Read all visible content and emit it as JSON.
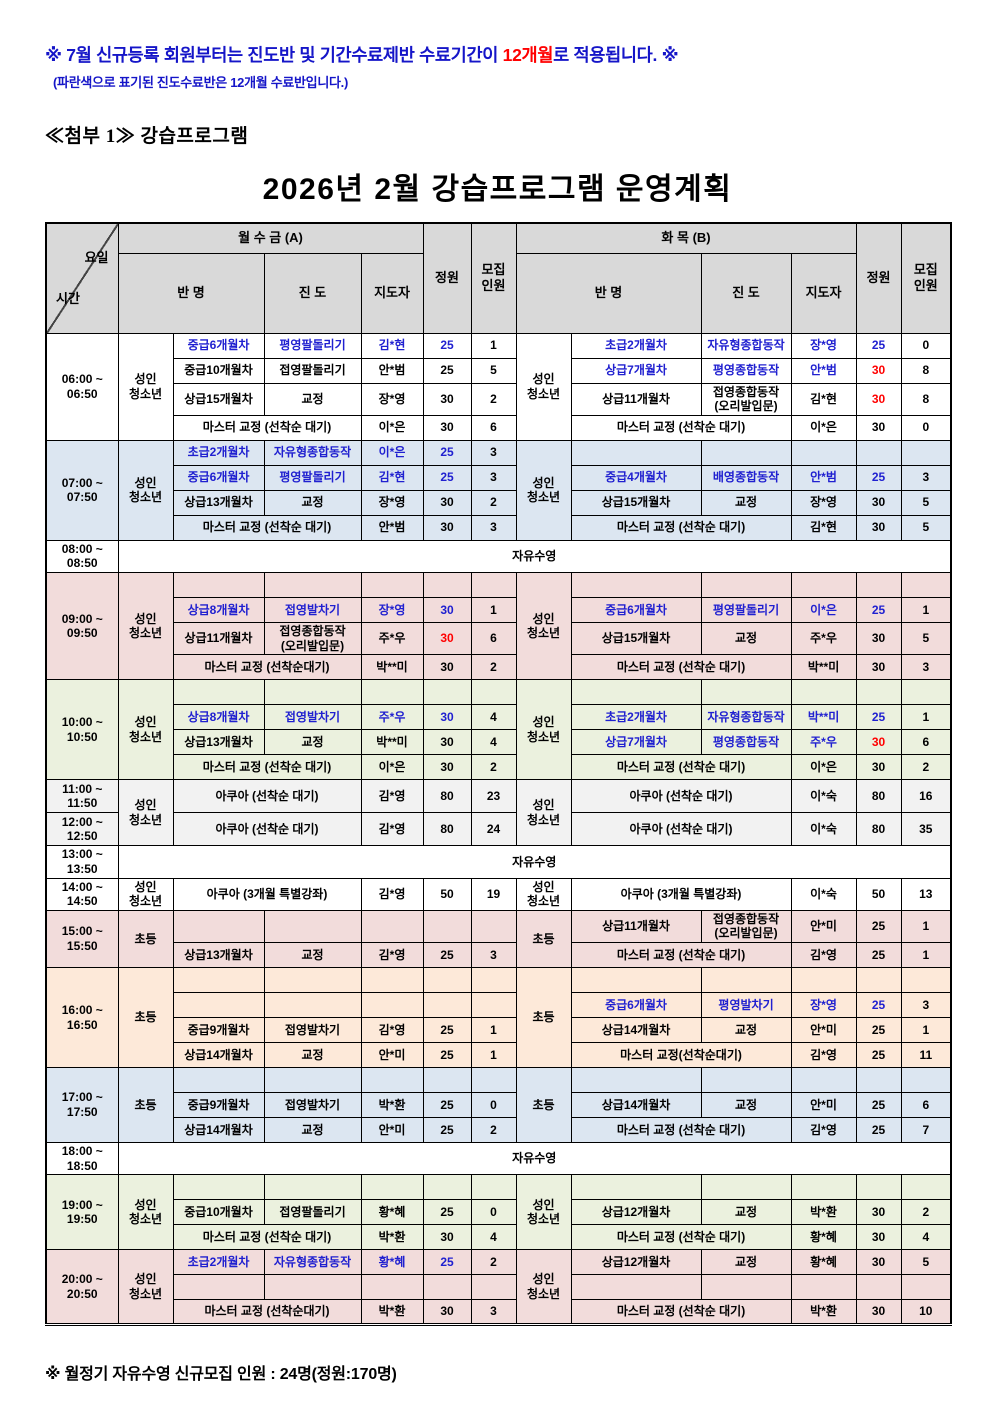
{
  "notice": {
    "line1_pre": "※ 7월 신규등록 회원부터는 진도반 및 기간수료제반 수료기간이 ",
    "line1_highlight": "12개월",
    "line1_post": "로 적용됩니다. ※",
    "line2": "(파란색으로 표기된 진도수료반은 12개월 수료반입니다.)"
  },
  "attachment_label": "≪첨부 1≫ 강습프로그램",
  "title": "2026년 2월 강습프로그램 운영계획",
  "footer": "※ 월정기 자유수영 신규모집 인원 : 24명(정원:170명)",
  "colors": {
    "notice_blue": "#1515c8",
    "highlight_red": "#ff0000",
    "progress_class_blue": "#2020d0",
    "capacity_red": "#ff0000",
    "header_grey": "#d9d9d9",
    "block_blue": "#dce6f1",
    "block_pink": "#f2dcdb",
    "block_green": "#ebf1de",
    "block_cream": "#fde9d9",
    "block_grey": "#f2f2f2"
  },
  "table": {
    "corner_top": "요일",
    "corner_bottom": "시간",
    "group_a": "월 수 금 (A)",
    "group_b": "화  목 (B)",
    "h_class": "반  명",
    "h_progress": "진  도",
    "h_coach": "지도자",
    "h_capacity": "정원",
    "h_recruit": "모집\n인원",
    "blocks": [
      {
        "kind": "lessons",
        "time": "06:00 ~\n06:50",
        "bg": "#ffffff",
        "a_group": "성인\n청소년",
        "b_group": "성인\n청소년",
        "rows": [
          {
            "a": {
              "ban": "중급6개월차",
              "prog": "평영팔돌리기",
              "coach": "김*현",
              "cap": "25",
              "rec": "1",
              "blue": true,
              "cap_color": "blue"
            },
            "b": {
              "ban": "초급2개월차",
              "prog": "자유형종합동작",
              "coach": "장*영",
              "cap": "25",
              "rec": "0",
              "blue": true,
              "cap_color": "blue"
            }
          },
          {
            "a": {
              "ban": "중급10개월차",
              "prog": "접영팔돌리기",
              "coach": "안*범",
              "cap": "25",
              "rec": "5"
            },
            "b": {
              "ban": "상급7개월차",
              "prog": "평영종합동작",
              "coach": "안*범",
              "cap": "30",
              "rec": "8",
              "blue": true,
              "cap_color": "red"
            }
          },
          {
            "a": {
              "ban": "상급15개월차",
              "prog": "교정",
              "coach": "장*영",
              "cap": "30",
              "rec": "2"
            },
            "b": {
              "ban": "상급11개월차",
              "prog": "접영종합동작\n(오리발입문)",
              "coach": "김*현",
              "cap": "30",
              "rec": "8",
              "cap_color": "red"
            }
          },
          {
            "a": {
              "merged": "마스터 교정 (선착순 대기)",
              "coach": "이*은",
              "cap": "30",
              "rec": "6"
            },
            "b": {
              "merged": "마스터 교정 (선착순 대기)",
              "coach": "이*은",
              "cap": "30",
              "rec": "0"
            }
          }
        ]
      },
      {
        "kind": "lessons",
        "time": "07:00 ~\n07:50",
        "bg": "#dce6f1",
        "a_group": "성인\n청소년",
        "b_group": "성인\n청소년",
        "rows": [
          {
            "a": {
              "ban": "초급2개월차",
              "prog": "자유형종합동작",
              "coach": "이*은",
              "cap": "25",
              "rec": "3",
              "blue": true,
              "cap_color": "blue"
            },
            "b": null
          },
          {
            "a": {
              "ban": "중급6개월차",
              "prog": "평영팔돌리기",
              "coach": "김*현",
              "cap": "25",
              "rec": "3",
              "blue": true,
              "cap_color": "blue"
            },
            "b": {
              "ban": "중급4개월차",
              "prog": "배영종합동작",
              "coach": "안*범",
              "cap": "25",
              "rec": "3",
              "blue": true,
              "cap_color": "blue"
            }
          },
          {
            "a": {
              "ban": "상급13개월차",
              "prog": "교정",
              "coach": "장*영",
              "cap": "30",
              "rec": "2"
            },
            "b": {
              "ban": "상급15개월차",
              "prog": "교정",
              "coach": "장*영",
              "cap": "30",
              "rec": "5"
            }
          },
          {
            "a": {
              "merged": "마스터 교정 (선착순 대기)",
              "coach": "안*범",
              "cap": "30",
              "rec": "3"
            },
            "b": {
              "merged": "마스터 교정 (선착순 대기)",
              "coach": "김*현",
              "cap": "30",
              "rec": "5"
            }
          }
        ]
      },
      {
        "kind": "free",
        "time": "08:00 ~\n08:50",
        "bg": "#ffffff",
        "label": "자유수영"
      },
      {
        "kind": "lessons",
        "time": "09:00 ~\n09:50",
        "bg": "#f2dcdb",
        "a_group": "성인\n청소년",
        "b_group": "성인\n청소년",
        "rows": [
          {
            "a": null,
            "b": null
          },
          {
            "a": {
              "ban": "상급8개월차",
              "prog": "접영발차기",
              "coach": "장*영",
              "cap": "30",
              "rec": "1",
              "blue": true,
              "cap_color": "blue"
            },
            "b": {
              "ban": "중급6개월차",
              "prog": "평영팔돌리기",
              "coach": "이*은",
              "cap": "25",
              "rec": "1",
              "blue": true,
              "cap_color": "blue"
            }
          },
          {
            "a": {
              "ban": "상급11개월차",
              "prog": "접영종합동작\n(오리발입문)",
              "coach": "주*우",
              "cap": "30",
              "rec": "6",
              "cap_color": "red"
            },
            "b": {
              "ban": "상급15개월차",
              "prog": "교정",
              "coach": "주*우",
              "cap": "30",
              "rec": "5"
            }
          },
          {
            "a": {
              "merged": "마스터 교정 (선착순대기)",
              "coach": "박**미",
              "cap": "30",
              "rec": "2"
            },
            "b": {
              "merged": "마스터 교정 (선착순 대기)",
              "coach": "박**미",
              "cap": "30",
              "rec": "3"
            }
          }
        ]
      },
      {
        "kind": "lessons",
        "time": "10:00 ~\n10:50",
        "bg": "#ebf1de",
        "a_group": "성인\n청소년",
        "b_group": "성인\n청소년",
        "rows": [
          {
            "a": null,
            "b": null
          },
          {
            "a": {
              "ban": "상급8개월차",
              "prog": "접영발차기",
              "coach": "주*우",
              "cap": "30",
              "rec": "4",
              "blue": true,
              "cap_color": "blue"
            },
            "b": {
              "ban": "초급2개월차",
              "prog": "자유형종합동작",
              "coach": "박**미",
              "cap": "25",
              "rec": "1",
              "blue": true,
              "cap_color": "blue"
            }
          },
          {
            "a": {
              "ban": "상급13개월차",
              "prog": "교정",
              "coach": "박**미",
              "cap": "30",
              "rec": "4"
            },
            "b": {
              "ban": "상급7개월차",
              "prog": "평영종합동작",
              "coach": "주*우",
              "cap": "30",
              "rec": "6",
              "blue": true,
              "cap_color": "red"
            }
          },
          {
            "a": {
              "merged": "마스터 교정 (선착순 대기)",
              "coach": "이*은",
              "cap": "30",
              "rec": "2"
            },
            "b": {
              "merged": "마스터 교정 (선착순 대기)",
              "coach": "이*은",
              "cap": "30",
              "rec": "2"
            }
          }
        ]
      },
      {
        "kind": "aqua",
        "bg": "#f2f2f2",
        "a_group": "성인\n청소년",
        "b_group": "성인\n청소년",
        "rows": [
          {
            "time": "11:00 ~\n11:50",
            "a": {
              "merged": "아쿠아 (선착순 대기)",
              "coach": "김*영",
              "cap": "80",
              "rec": "23"
            },
            "b": {
              "merged": "아쿠아 (선착순 대기)",
              "coach": "이*숙",
              "cap": "80",
              "rec": "16"
            }
          },
          {
            "time": "12:00 ~\n12:50",
            "a": {
              "merged": "아쿠아 (선착순 대기)",
              "coach": "김*영",
              "cap": "80",
              "rec": "24"
            },
            "b": {
              "merged": "아쿠아 (선착순 대기)",
              "coach": "이*숙",
              "cap": "80",
              "rec": "35"
            }
          }
        ]
      },
      {
        "kind": "free",
        "time": "13:00 ~\n13:50",
        "bg": "#ffffff",
        "label": "자유수영"
      },
      {
        "kind": "lessons",
        "time": "14:00 ~\n14:50",
        "bg": "#ffffff",
        "a_group": "성인\n청소년",
        "b_group": "성인\n청소년",
        "rows": [
          {
            "a": {
              "merged": "아쿠아 (3개월 특별강좌)",
              "coach": "김*영",
              "cap": "50",
              "rec": "19"
            },
            "b": {
              "merged": "아쿠아 (3개월 특별강좌)",
              "coach": "이*숙",
              "cap": "50",
              "rec": "13"
            }
          }
        ]
      },
      {
        "kind": "lessons",
        "time": "15:00 ~\n15:50",
        "bg": "#f2dcdb",
        "a_group": "초등",
        "b_group": "초등",
        "rows": [
          {
            "a": null,
            "b": {
              "ban": "상급11개월차",
              "prog": "접영종합동작\n(오리발입문)",
              "coach": "안*미",
              "cap": "25",
              "rec": "1"
            }
          },
          {
            "a": {
              "ban": "상급13개월차",
              "prog": "교정",
              "coach": "김*영",
              "cap": "25",
              "rec": "3"
            },
            "b": {
              "merged": "마스터 교정 (선착순 대기)",
              "coach": "김*영",
              "cap": "25",
              "rec": "1"
            }
          }
        ]
      },
      {
        "kind": "lessons",
        "time": "16:00 ~\n16:50",
        "bg": "#fde9d9",
        "a_group": "초등",
        "b_group": "초등",
        "rows": [
          {
            "a": null,
            "b": null
          },
          {
            "a": null,
            "b": {
              "ban": "중급6개월차",
              "prog": "평영발차기",
              "coach": "장*영",
              "cap": "25",
              "rec": "3",
              "blue": true,
              "cap_color": "blue"
            }
          },
          {
            "a": {
              "ban": "중급9개월차",
              "prog": "접영발차기",
              "coach": "김*영",
              "cap": "25",
              "rec": "1"
            },
            "b": {
              "ban": "상급14개월차",
              "prog": "교정",
              "coach": "안*미",
              "cap": "25",
              "rec": "1"
            }
          },
          {
            "a": {
              "ban": "상급14개월차",
              "prog": "교정",
              "coach": "안*미",
              "cap": "25",
              "rec": "1"
            },
            "b": {
              "merged": "마스터 교정(선착순대기)",
              "coach": "김*영",
              "cap": "25",
              "rec": "11"
            }
          }
        ]
      },
      {
        "kind": "lessons",
        "time": "17:00 ~\n17:50",
        "bg": "#dce6f1",
        "a_group": "초등",
        "b_group": "초등",
        "rows": [
          {
            "a": null,
            "b": null
          },
          {
            "a": {
              "ban": "중급9개월차",
              "prog": "접영발차기",
              "coach": "박*환",
              "cap": "25",
              "rec": "0"
            },
            "b": {
              "ban": "상급14개월차",
              "prog": "교정",
              "coach": "안*미",
              "cap": "25",
              "rec": "6"
            }
          },
          {
            "a": {
              "ban": "상급14개월차",
              "prog": "교정",
              "coach": "안*미",
              "cap": "25",
              "rec": "2"
            },
            "b": {
              "merged": "마스터 교정 (선착순 대기)",
              "coach": "김*영",
              "cap": "25",
              "rec": "7"
            }
          }
        ]
      },
      {
        "kind": "free",
        "time": "18:00 ~\n18:50",
        "bg": "#ffffff",
        "label": "자유수영"
      },
      {
        "kind": "lessons",
        "time": "19:00 ~\n19:50",
        "bg": "#ebf1de",
        "a_group": "성인\n청소년",
        "b_group": "성인\n청소년",
        "rows": [
          {
            "a": null,
            "b": null
          },
          {
            "a": {
              "ban": "중급10개월차",
              "prog": "접영팔돌리기",
              "coach": "황*혜",
              "cap": "25",
              "rec": "0"
            },
            "b": {
              "ban": "상급12개월차",
              "prog": "교정",
              "coach": "박*환",
              "cap": "30",
              "rec": "2"
            }
          },
          {
            "a": {
              "merged": "마스터 교정 (선착순 대기)",
              "coach": "박*환",
              "cap": "30",
              "rec": "4"
            },
            "b": {
              "merged": "마스터 교정 (선착순 대기)",
              "coach": "황*혜",
              "cap": "30",
              "rec": "4"
            }
          }
        ]
      },
      {
        "kind": "lessons",
        "time": "20:00 ~\n20:50",
        "bg": "#f2dcdb",
        "a_group": "성인\n청소년",
        "b_group": "성인\n청소년",
        "rows": [
          {
            "a": {
              "ban": "초급2개월차",
              "prog": "자유형종합동작",
              "coach": "황*혜",
              "cap": "25",
              "rec": "2",
              "blue": true,
              "cap_color": "blue"
            },
            "b": {
              "ban": "상급12개월차",
              "prog": "교정",
              "coach": "황*혜",
              "cap": "30",
              "rec": "5"
            }
          },
          {
            "a": null,
            "b": null
          },
          {
            "a": {
              "merged": "마스터 교정 (선착순대기)",
              "coach": "박*환",
              "cap": "30",
              "rec": "3"
            },
            "b": {
              "merged": "마스터 교정 (선착순 대기)",
              "coach": "박*환",
              "cap": "30",
              "rec": "10"
            }
          }
        ]
      }
    ]
  }
}
